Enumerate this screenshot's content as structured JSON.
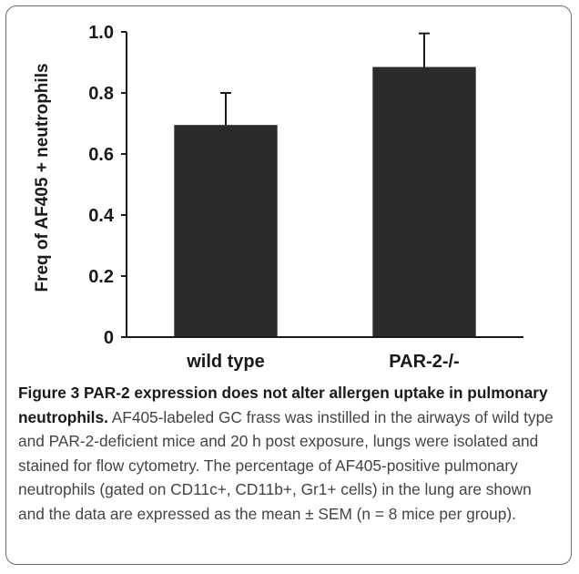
{
  "chart_data": {
    "type": "bar",
    "categories": [
      "wild type",
      "PAR-2-/-"
    ],
    "values": [
      0.695,
      0.885
    ],
    "errors": [
      0.105,
      0.11
    ],
    "ylabel": "Freq of AF405 + neutrophils",
    "xlabel": "",
    "ylim": [
      0,
      1.0
    ],
    "yticks": [
      "0",
      "0.2",
      "0.4",
      "0.6",
      "0.8",
      "1.0"
    ],
    "bar_color": "#2b2b2b",
    "grid": false
  },
  "caption": {
    "label": "Figure 3",
    "title": "PAR-2 expression does not alter allergen uptake in pulmonary neutrophils.",
    "body": "AF405-labeled GC frass was instilled in the airways of wild type and PAR-2-deficient mice and 20 h post exposure, lungs were isolated and stained for flow cytometry. The percentage of AF405-positive pulmonary neutrophils (gated on CD11c+, CD11b+, Gr1+ cells) in the lung are shown and the data are expressed as the mean ± SEM (n = 8 mice per group)."
  }
}
